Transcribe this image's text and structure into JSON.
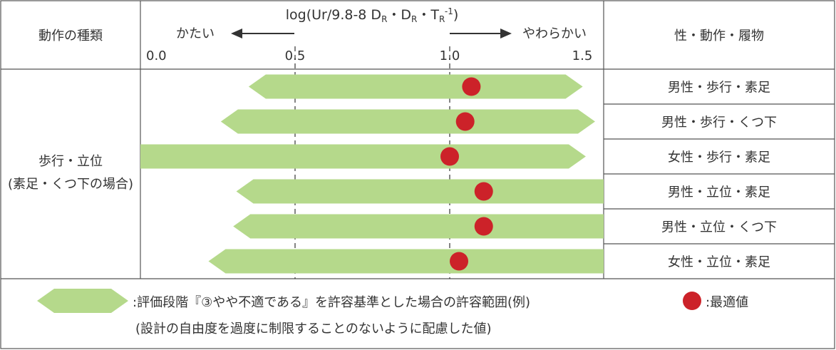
{
  "chart_data": {
    "type": "range-table",
    "header": {
      "motion_col": "動作の種類",
      "condition_col": "性・動作・履物",
      "axis_title_prefix": "log(Ur/9.8-8 D",
      "axis_title_sub1": "R",
      "axis_title_mid": "・D",
      "axis_title_sub2": "R",
      "axis_title_mid2": "・T",
      "axis_title_sub3": "R",
      "axis_title_sup": "-1",
      "axis_title_suffix": ")",
      "hard_label": "かたい",
      "soft_label": "やわらかい"
    },
    "xlim": [
      0.0,
      1.5
    ],
    "ticks": [
      "0.0",
      "0.5",
      "1.0",
      "1.5"
    ],
    "tick_values": [
      0.0,
      0.5,
      1.0,
      1.5
    ],
    "dashed_gridlines": [
      0.5,
      1.0
    ],
    "category": {
      "line1": "歩行・立位",
      "line2": "(素足・くつ下の場合)"
    },
    "rows": [
      {
        "label": "男性・歩行・素足",
        "min": 0.35,
        "max": 1.43,
        "optimum": 1.07
      },
      {
        "label": "男性・歩行・くつ下",
        "min": 0.26,
        "max": 1.47,
        "optimum": 1.05
      },
      {
        "label": "女性・歩行・素足",
        "min": 0.0,
        "max": 1.44,
        "optimum": 1.0
      },
      {
        "label": "男性・立位・素足",
        "min": 0.31,
        "max": 1.51,
        "optimum": 1.11
      },
      {
        "label": "男性・立位・くつ下",
        "min": 0.3,
        "max": 1.51,
        "optimum": 1.11
      },
      {
        "label": "女性・立位・素足",
        "min": 0.22,
        "max": 1.51,
        "optimum": 1.03
      }
    ],
    "legend": {
      "range_text": ":評価段階『③やや不適である』を許容基準とした場合の許容範囲(例)",
      "range_note": "(設計の自由度を過度に制限することのないように配慮した値)",
      "optimum_text": ":最適値"
    },
    "colors": {
      "range_fill": "#b5d98b",
      "optimum": "#cc2229",
      "border": "#555555",
      "grid": "#333333"
    }
  }
}
